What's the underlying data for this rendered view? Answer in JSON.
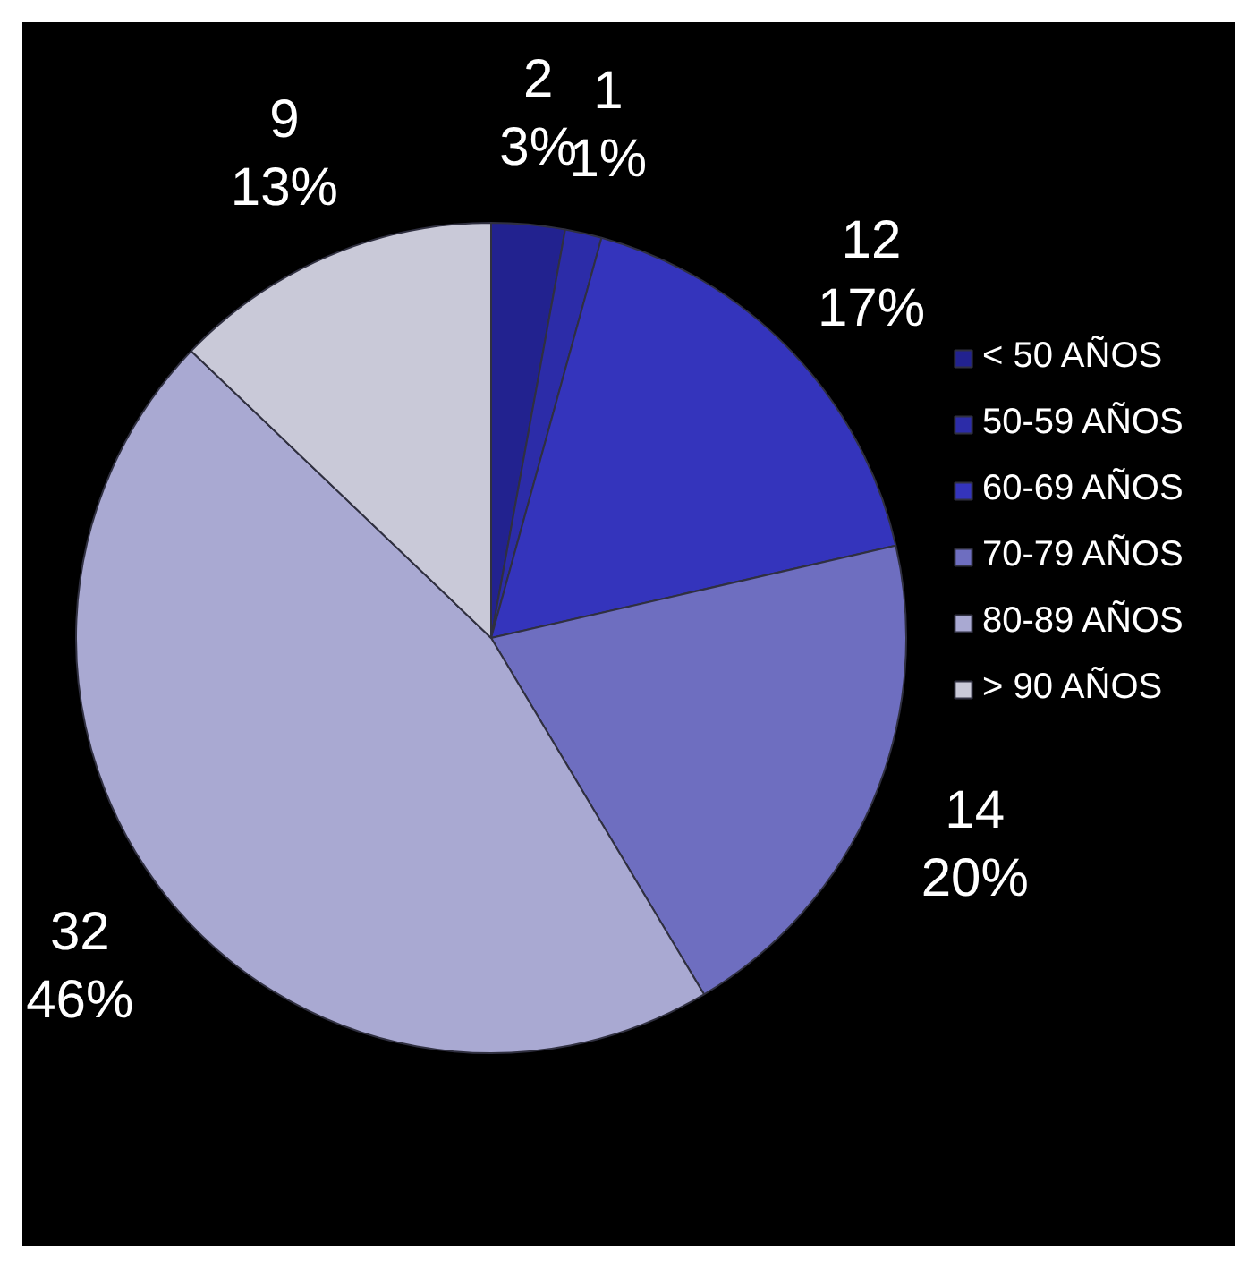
{
  "chart_data": {
    "type": "pie",
    "categories": [
      "< 50 AÑOS",
      "50-59 AÑOS",
      "60-69 AÑOS",
      "70-79 AÑOS",
      "80-89 AÑOS",
      "> 90 AÑOS"
    ],
    "values": [
      2,
      1,
      12,
      14,
      32,
      9
    ],
    "colors": [
      "#22228f",
      "#2c2ca8",
      "#3434bc",
      "#6e6ec0",
      "#a9a9d2",
      "#c9c9d8"
    ],
    "value_labels": [
      "2\n3%",
      "1\n1%",
      "12\n17%",
      "14\n20%",
      "32\n46%",
      "9\n13%"
    ],
    "legend": "right"
  }
}
